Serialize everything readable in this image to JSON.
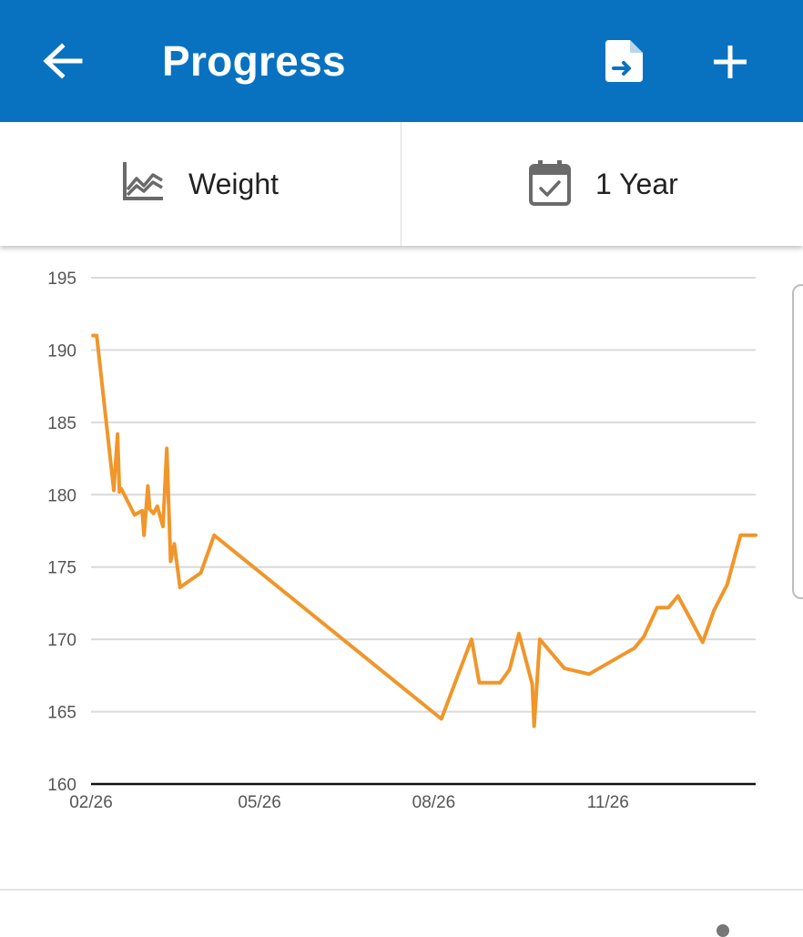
{
  "header": {
    "title": "Progress",
    "back_icon": "arrow-left-icon",
    "export_icon": "file-export-icon",
    "add_icon": "plus-icon",
    "background": "#0872c0"
  },
  "selectors": {
    "metric": {
      "label": "Weight",
      "icon": "line-chart-icon"
    },
    "range": {
      "label": "1 Year",
      "icon": "calendar-check-icon"
    }
  },
  "chart_data": {
    "type": "line",
    "color": "#f0962a",
    "ylim": [
      160,
      195
    ],
    "y_ticks": [
      "160",
      "165",
      "170",
      "175",
      "180",
      "185",
      "190",
      "195"
    ],
    "x_ticks": [
      "02/26",
      "05/26",
      "08/26",
      "11/26"
    ],
    "grid": true,
    "series": [
      {
        "x": [
          "02/27",
          "03/01",
          "03/10",
          "03/12",
          "03/13",
          "03/14",
          "03/21",
          "03/25",
          "03/26",
          "03/28",
          "03/29",
          "03/31",
          "04/02",
          "04/05",
          "04/07",
          "04/09",
          "04/11",
          "04/14",
          "04/25",
          "05/02",
          "08/30",
          "09/15",
          "09/19",
          "09/30",
          "10/05",
          "10/10",
          "10/17",
          "10/18",
          "10/21",
          "11/03",
          "11/16",
          "12/10",
          "12/15",
          "12/22",
          "12/28",
          "01/02",
          "01/09",
          "01/15",
          "01/21",
          "01/28",
          "02/04",
          "02/12"
        ],
        "values": [
          191,
          191,
          180.3,
          184.2,
          180.2,
          180.4,
          178.6,
          178.9,
          177.2,
          180.6,
          179,
          178.7,
          179.2,
          177.8,
          183.2,
          175.4,
          176.6,
          173.6,
          174.6,
          177.2,
          164.5,
          170,
          167,
          167,
          167.9,
          170.4,
          166.9,
          164,
          170,
          168,
          167.6,
          169.4,
          170.2,
          172.2,
          172.2,
          173,
          171.3,
          169.8,
          172,
          173.8,
          177.2,
          177.2
        ]
      }
    ]
  }
}
